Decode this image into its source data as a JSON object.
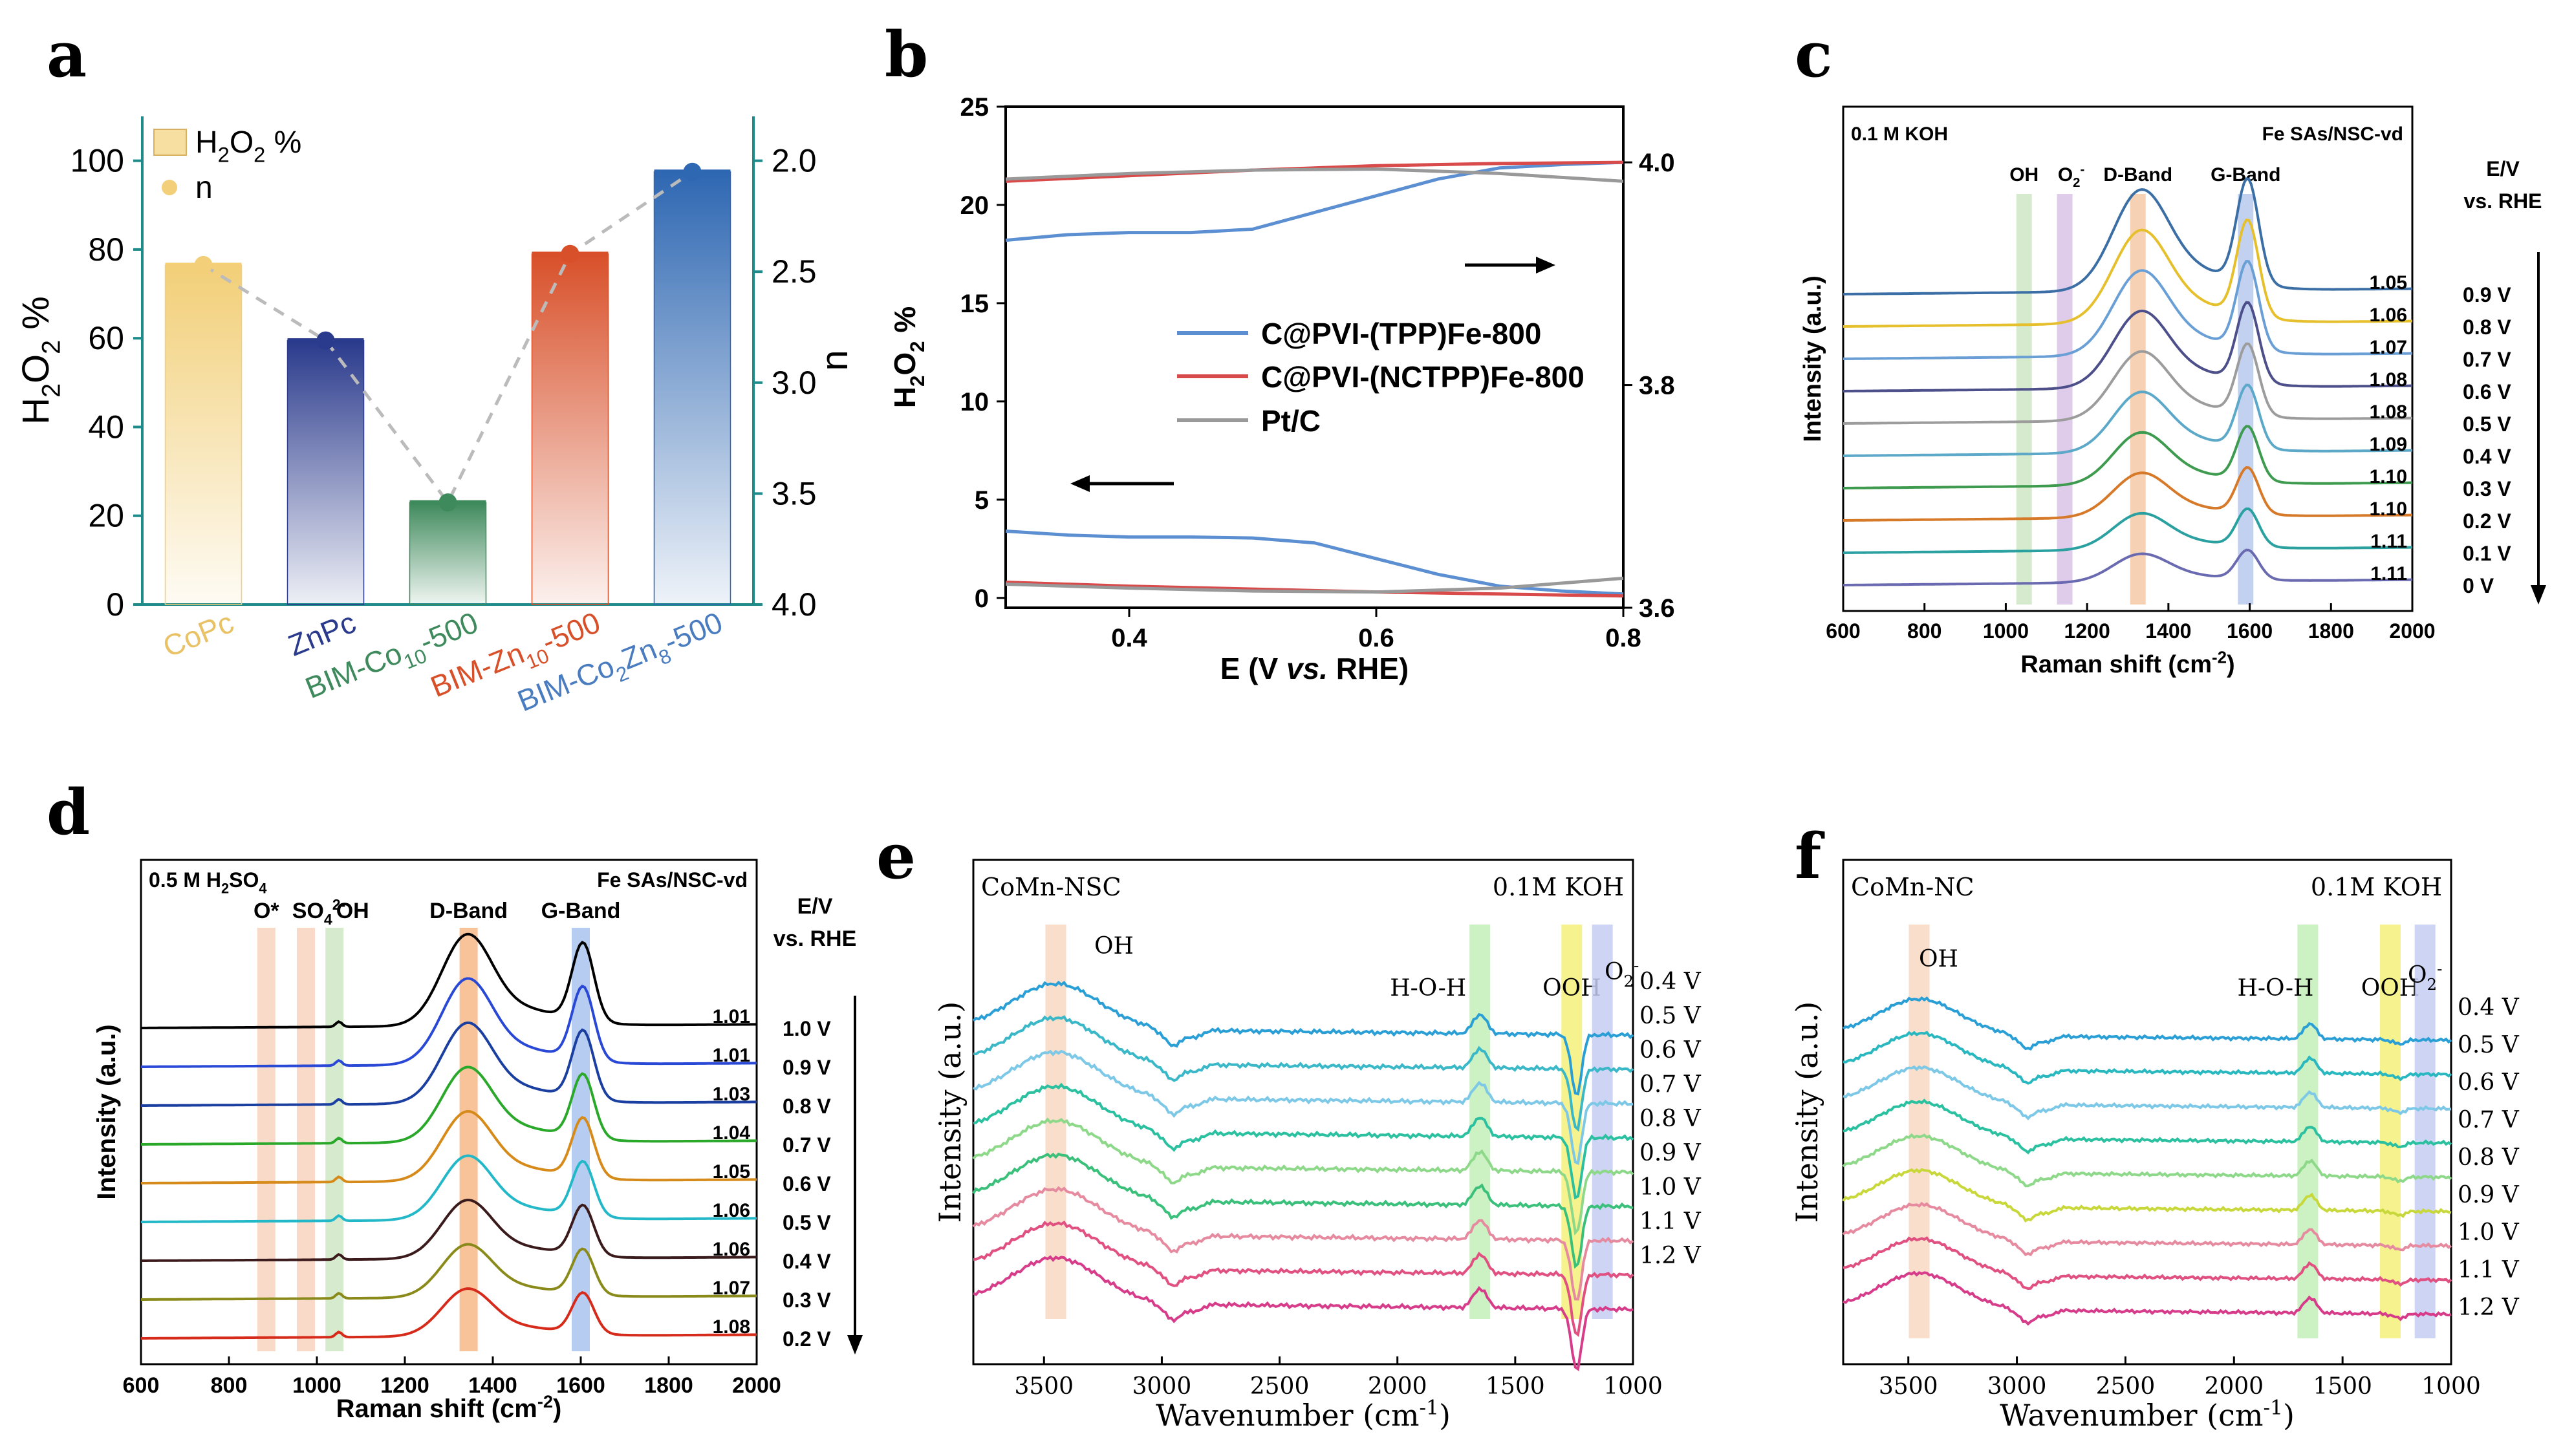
{
  "panels": [
    {
      "letter": "a"
    },
    {
      "letter": "b"
    },
    {
      "letter": "c"
    },
    {
      "letter": "d"
    },
    {
      "letter": "e"
    },
    {
      "letter": "f"
    }
  ],
  "chart_data": [
    {
      "id": "a",
      "type": "bar",
      "categories": [
        "CoPc",
        "ZnPc",
        "BIM-Co10-500",
        "BIM-Zn10-500",
        "BIM-Co2Zn8-500"
      ],
      "category_labels": [
        {
          "parts": [
            {
              "t": "CoPc"
            }
          ]
        },
        {
          "parts": [
            {
              "t": "ZnPc"
            }
          ]
        },
        {
          "parts": [
            {
              "t": "BIM-Co"
            },
            {
              "t": "10",
              "sub": true
            },
            {
              "t": "-500"
            }
          ]
        },
        {
          "parts": [
            {
              "t": "BIM-Zn"
            },
            {
              "t": "10",
              "sub": true
            },
            {
              "t": "-500"
            }
          ]
        },
        {
          "parts": [
            {
              "t": "BIM-Co"
            },
            {
              "t": "2",
              "sub": true
            },
            {
              "t": "Zn"
            },
            {
              "t": "8",
              "sub": true
            },
            {
              "t": "-500"
            }
          ]
        }
      ],
      "series": [
        {
          "name": "H2O2 %",
          "values": [
            76.5,
            59.5,
            23,
            79,
            97.5
          ]
        },
        {
          "name": "n",
          "values": [
            2.47,
            2.81,
            3.54,
            2.42,
            2.05
          ]
        }
      ],
      "bar_colors": [
        "#f2cf78",
        "#2a3a8c",
        "#3f8a5c",
        "#d8502a",
        "#2e67b2"
      ],
      "label_colors": [
        "#e8c265",
        "#2a3a8c",
        "#3f8a5c",
        "#d8502a",
        "#4a7cc0"
      ],
      "ylabel": "H2O2 %",
      "ylabel_parts": [
        {
          "t": "H"
        },
        {
          "t": "2",
          "sub": true
        },
        {
          "t": "O"
        },
        {
          "t": "2",
          "sub": true
        },
        {
          "t": " %"
        }
      ],
      "y2label": "n",
      "ylim": [
        0,
        110
      ],
      "yticks": [
        0,
        20,
        40,
        60,
        80,
        100
      ],
      "y2lim": [
        1.8,
        4.0
      ],
      "y2ticks": [
        2.0,
        2.5,
        3.0,
        3.5,
        4.0
      ],
      "y2ticklabels": [
        "2.0",
        "2.5",
        "3.0",
        "3.5",
        "4.0"
      ],
      "legend": [
        {
          "label_parts": [
            {
              "t": "H"
            },
            {
              "t": "2",
              "sub": true
            },
            {
              "t": "O"
            },
            {
              "t": "2",
              "sub": true
            },
            {
              "t": " %"
            }
          ],
          "marker": "bar"
        },
        {
          "label_parts": [
            {
              "t": "n"
            }
          ],
          "marker": "dot"
        }
      ],
      "legend_position": "top-left",
      "axis_color": "#1f8a8a"
    },
    {
      "id": "b",
      "type": "line",
      "xlabel": "E (V vs. RHE)",
      "xlabel_parts": [
        {
          "t": "E (V "
        },
        {
          "t": "vs.",
          "i": true
        },
        {
          "t": " RHE)"
        }
      ],
      "ylabel": "H2O2 %",
      "ylabel_parts": [
        {
          "t": "H"
        },
        {
          "t": "2",
          "sub": true
        },
        {
          "t": "O"
        },
        {
          "t": "2",
          "sub": true
        },
        {
          "t": " %"
        }
      ],
      "xlim": [
        0.3,
        0.8
      ],
      "xticks": [
        0.4,
        0.6,
        0.8
      ],
      "xticklabels": [
        "0.4",
        "0.6",
        "0.8"
      ],
      "ylim": [
        -0.5,
        25
      ],
      "yticks": [
        0,
        5,
        10,
        15,
        20,
        25
      ],
      "y2lim": [
        3.6,
        4.05
      ],
      "y2ticks": [
        3.6,
        3.8,
        4.0
      ],
      "y2ticklabels": [
        "3.6",
        "3.8",
        "4.0"
      ],
      "series": [
        {
          "name": "C@PVI-(TPP)Fe-800",
          "color": "#5b8fd1",
          "axis": "left",
          "x": [
            0.3,
            0.35,
            0.4,
            0.45,
            0.5,
            0.55,
            0.6,
            0.65,
            0.7,
            0.75,
            0.8
          ],
          "y": [
            3.4,
            3.2,
            3.1,
            3.1,
            3.05,
            2.8,
            2.0,
            1.2,
            0.6,
            0.35,
            0.2
          ]
        },
        {
          "name": "C@PVI-(NCTPP)Fe-800",
          "color": "#d94a4a",
          "axis": "left",
          "x": [
            0.3,
            0.4,
            0.5,
            0.6,
            0.7,
            0.8
          ],
          "y": [
            0.8,
            0.6,
            0.45,
            0.3,
            0.2,
            0.1
          ]
        },
        {
          "name": "Pt/C",
          "color": "#999999",
          "axis": "left",
          "x": [
            0.3,
            0.4,
            0.5,
            0.6,
            0.7,
            0.8
          ],
          "y": [
            0.7,
            0.5,
            0.35,
            0.3,
            0.5,
            1.0
          ]
        },
        {
          "name": "C@PVI-(TPP)Fe-800 n",
          "color": "#5b8fd1",
          "axis": "right",
          "x": [
            0.3,
            0.35,
            0.4,
            0.45,
            0.5,
            0.55,
            0.6,
            0.65,
            0.7,
            0.75,
            0.8
          ],
          "y": [
            3.93,
            3.935,
            3.937,
            3.937,
            3.94,
            3.955,
            3.97,
            3.985,
            3.995,
            3.998,
            4.0
          ]
        },
        {
          "name": "C@PVI-(NCTPP)Fe-800 n",
          "color": "#d94a4a",
          "axis": "right",
          "x": [
            0.3,
            0.4,
            0.5,
            0.6,
            0.7,
            0.8
          ],
          "y": [
            3.983,
            3.988,
            3.993,
            3.997,
            3.999,
            4.0
          ]
        },
        {
          "name": "Pt/C n",
          "color": "#999999",
          "axis": "right",
          "x": [
            0.3,
            0.4,
            0.5,
            0.6,
            0.7,
            0.8
          ],
          "y": [
            3.985,
            3.99,
            3.993,
            3.994,
            3.99,
            3.983
          ]
        }
      ],
      "legend": [
        "C@PVI-(TPP)Fe-800",
        "C@PVI-(NCTPP)Fe-800",
        "Pt/C"
      ],
      "legend_position": "center-right",
      "annotations": [
        "arrow-left pointing to left axis",
        "arrow-right pointing to right axis"
      ]
    },
    {
      "id": "c",
      "type": "line",
      "title_left": "0.1 M KOH",
      "title_right": "Fe SAs/NSC-vd",
      "xlabel": "Raman shift (cm-2)",
      "xlabel_parts": [
        {
          "t": "Raman shift (cm"
        },
        {
          "t": "-2",
          "sup": true
        },
        {
          "t": ")"
        }
      ],
      "ylabel": "Intensity (a.u.)",
      "xlim": [
        600,
        2000
      ],
      "xticks": [
        600,
        800,
        1000,
        1200,
        1400,
        1600,
        1800,
        2000
      ],
      "xticklabels": [
        "600",
        "800",
        "1000",
        "1200",
        "1400",
        "1600",
        "1800",
        "2000"
      ],
      "bands": [
        {
          "label_parts": [
            {
              "t": "OH"
            }
          ],
          "center": 1045,
          "color": "#cfe6c6"
        },
        {
          "label_parts": [
            {
              "t": "O"
            },
            {
              "t": "2",
              "sub": true
            },
            {
              "t": "-",
              "sup": true
            }
          ],
          "center": 1145,
          "color": "#d9c3e6"
        },
        {
          "label_parts": [
            {
              "t": "D-Band"
            }
          ],
          "center": 1325,
          "color": "#f5c9a6"
        },
        {
          "label_parts": [
            {
              "t": "G-Band"
            }
          ],
          "center": 1590,
          "color": "#b9c9ee"
        }
      ],
      "potential_header": [
        "E/V",
        "vs. RHE"
      ],
      "ratios": [
        "1.05",
        "1.06",
        "1.07",
        "1.08",
        "1.08",
        "1.09",
        "1.10",
        "1.10",
        "1.11",
        "1.11"
      ],
      "potentials": [
        "0.9 V",
        "0.8 V",
        "0.7 V",
        "0.6 V",
        "0.5 V",
        "0.4 V",
        "0.3 V",
        "0.2 V",
        "0.1 V",
        "0 V"
      ],
      "series_colors": [
        "#3a6ea5",
        "#e6c02c",
        "#6a9fd6",
        "#4d4f8a",
        "#9c9c9c",
        "#5ca8c8",
        "#3e9a4e",
        "#d67a2a",
        "#2aa0a0",
        "#6a6ab0"
      ]
    },
    {
      "id": "d",
      "type": "line",
      "title_left_parts": [
        {
          "t": "0.5 M H"
        },
        {
          "t": "2",
          "sub": true
        },
        {
          "t": "SO"
        },
        {
          "t": "4",
          "sub": true
        }
      ],
      "title_right": "Fe SAs/NSC-vd",
      "xlabel": "Raman shift (cm-2)",
      "xlabel_parts": [
        {
          "t": "Raman shift (cm"
        },
        {
          "t": "-2",
          "sup": true
        },
        {
          "t": ")"
        }
      ],
      "ylabel": "Intensity (a.u.)",
      "xlim": [
        600,
        2000
      ],
      "xticks": [
        600,
        800,
        1000,
        1200,
        1400,
        1600,
        1800,
        2000
      ],
      "xticklabels": [
        "600",
        "800",
        "1000",
        "1200",
        "1400",
        "1600",
        "1800",
        "2000"
      ],
      "bands": [
        {
          "label_parts": [
            {
              "t": "O*"
            }
          ],
          "center": 885,
          "color": "#f8d3bf"
        },
        {
          "label_parts": [
            {
              "t": "SO"
            },
            {
              "t": "4",
              "sub": true
            },
            {
              "t": "2-",
              "sup": true
            }
          ],
          "center": 975,
          "color": "#f8d3bf"
        },
        {
          "label_parts": [
            {
              "t": "OH"
            }
          ],
          "center": 1040,
          "color": "#cfe6c6"
        },
        {
          "label_parts": [
            {
              "t": "D-Band"
            }
          ],
          "center": 1345,
          "color": "#f7b987"
        },
        {
          "label_parts": [
            {
              "t": "G-Band"
            }
          ],
          "center": 1600,
          "color": "#a9c3ee"
        }
      ],
      "potential_header": [
        "E/V",
        "vs. RHE"
      ],
      "ratios": [
        "1.01",
        "1.01",
        "1.03",
        "1.04",
        "1.05",
        "1.06",
        "1.06",
        "1.07",
        "1.08"
      ],
      "potentials": [
        "1.0 V",
        "0.9 V",
        "0.8 V",
        "0.7 V",
        "0.6 V",
        "0.5 V",
        "0.4 V",
        "0.3 V",
        "0.2 V"
      ],
      "series_colors": [
        "#000000",
        "#2a48d6",
        "#1b3fa0",
        "#2aa82a",
        "#d68a1a",
        "#22b8c8",
        "#3a1a1a",
        "#8a8a1a",
        "#d62a1a"
      ]
    },
    {
      "id": "e",
      "type": "line",
      "title_left": "CoMn-NSC",
      "title_right": "0.1M KOH",
      "xlabel": "Wavenumber (cm-1)",
      "xlabel_parts": [
        {
          "t": "Wavenumber (cm"
        },
        {
          "t": "-1",
          "sup": true
        },
        {
          "t": ")"
        }
      ],
      "ylabel": "Intensity (a.u.)",
      "xlim": [
        3800,
        1000
      ],
      "xticks": [
        3500,
        3000,
        2500,
        2000,
        1500,
        1000
      ],
      "xticklabels": [
        "3500",
        "3000",
        "2500",
        "2000",
        "1500",
        "1000"
      ],
      "bands": [
        {
          "label_parts": [
            {
              "t": "OH"
            }
          ],
          "center": 3450,
          "color": "#f8d8c2"
        },
        {
          "label_parts": [
            {
              "t": "H-O-H"
            }
          ],
          "center": 1650,
          "color": "#c3efb9"
        },
        {
          "label_parts": [
            {
              "t": "OOH"
            }
          ],
          "center": 1260,
          "color": "#f4f07a"
        },
        {
          "label_parts": [
            {
              "t": "O"
            },
            {
              "t": "2",
              "sub": true
            },
            {
              "t": "-",
              "sup": true
            }
          ],
          "center": 1130,
          "color": "#c4ccf2"
        }
      ],
      "potentials": [
        "0.4 V",
        "0.5 V",
        "0.6 V",
        "0.7 V",
        "0.8 V",
        "0.9 V",
        "1.0 V",
        "1.1 V",
        "1.2 V"
      ],
      "series_colors": [
        "#2a9fd6",
        "#3ab8c8",
        "#7cc8e6",
        "#2ac0a0",
        "#8ed88a",
        "#3ac07a",
        "#e68aa0",
        "#e05080",
        "#d63c8a"
      ]
    },
    {
      "id": "f",
      "type": "line",
      "title_left": "CoMn-NC",
      "title_right": "0.1M KOH",
      "xlabel": "Wavenumber (cm-1)",
      "xlabel_parts": [
        {
          "t": "Wavenumber (cm"
        },
        {
          "t": "-1",
          "sup": true
        },
        {
          "t": ")"
        }
      ],
      "ylabel": "Intensity (a.u.)",
      "xlim": [
        3800,
        1000
      ],
      "xticks": [
        3500,
        3000,
        2500,
        2000,
        1500,
        1000
      ],
      "xticklabels": [
        "3500",
        "3000",
        "2500",
        "2000",
        "1500",
        "1000"
      ],
      "bands": [
        {
          "label_parts": [
            {
              "t": "OH"
            }
          ],
          "center": 3450,
          "color": "#f8d8c2"
        },
        {
          "label_parts": [
            {
              "t": "H-O-H"
            }
          ],
          "center": 1660,
          "color": "#c3efb9"
        },
        {
          "label_parts": [
            {
              "t": "OOH"
            }
          ],
          "center": 1280,
          "color": "#f4f07a"
        },
        {
          "label_parts": [
            {
              "t": "O"
            },
            {
              "t": "2",
              "sub": true
            },
            {
              "t": "-",
              "sup": true
            }
          ],
          "center": 1120,
          "color": "#c4ccf2"
        }
      ],
      "potentials": [
        "0.4 V",
        "0.5 V",
        "0.6 V",
        "0.7 V",
        "0.8 V",
        "0.9 V",
        "1.0 V",
        "1.1 V",
        "1.2 V"
      ],
      "series_colors": [
        "#2a9fd6",
        "#2ab8c0",
        "#7cc8e6",
        "#2ac0a0",
        "#8ed88a",
        "#c8d83a",
        "#e68aa0",
        "#e05080",
        "#d63c8a"
      ]
    }
  ]
}
